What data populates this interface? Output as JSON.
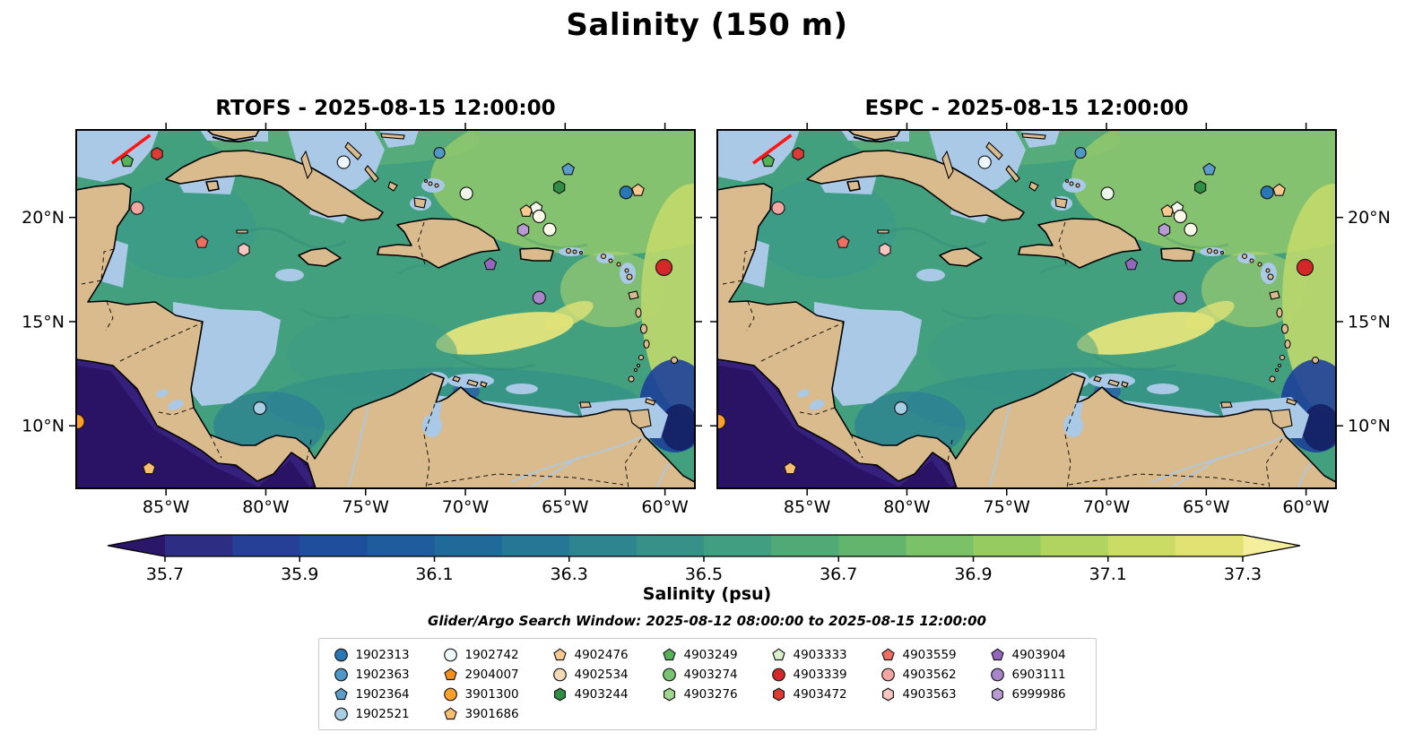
{
  "title": "Salinity (150 m)",
  "panels": [
    {
      "title": "RTOFS - 2025-08-15 12:00:00"
    },
    {
      "title": "ESPC - 2025-08-15 12:00:00"
    }
  ],
  "search_window": "Glider/Argo Search Window: 2025-08-12 08:00:00 to 2025-08-15 12:00:00",
  "chart_data": {
    "type": "heatmap",
    "title": "Salinity (150 m)",
    "variable": "Salinity (psu)",
    "depth_label": "150 m",
    "panel_titles": [
      "RTOFS - 2025-08-15 12:00:00",
      "ESPC - 2025-08-15 12:00:00"
    ],
    "lon_range": [
      -89.5,
      -58.5
    ],
    "lat_range": [
      7.0,
      24.2
    ],
    "lon_ticks": [
      "85°W",
      "80°W",
      "75°W",
      "70°W",
      "65°W",
      "60°W"
    ],
    "lon_tick_values": [
      -85,
      -80,
      -75,
      -70,
      -65,
      -60
    ],
    "lat_ticks": [
      "20°N",
      "15°N",
      "10°N"
    ],
    "lat_tick_values": [
      20,
      15,
      10
    ],
    "colorbar": {
      "label": "Salinity (psu)",
      "tick_labels": [
        "35.7",
        "35.9",
        "36.1",
        "36.3",
        "36.5",
        "36.7",
        "36.9",
        "37.1",
        "37.3"
      ],
      "tick_values": [
        35.7,
        35.9,
        36.1,
        36.3,
        36.5,
        36.7,
        36.9,
        37.1,
        37.3
      ],
      "vmin": 35.7,
      "vmax": 37.3,
      "extend": "both",
      "under_color": "#2a1769",
      "over_color": "#f5ee9d",
      "segment_colors": [
        "#2c2d83",
        "#263f97",
        "#1f4e9d",
        "#1e5c9d",
        "#206a9a",
        "#267795",
        "#2e848f",
        "#379188",
        "#429e80",
        "#50aa76",
        "#63b56d",
        "#7bc167",
        "#95cb61",
        "#b0d45f",
        "#cbdc64",
        "#e2e272"
      ]
    },
    "glider_track": {
      "lon1": -87.7,
      "lat1": 22.6,
      "lon2": -85.8,
      "lat2": 23.95,
      "color": "#ff1414"
    },
    "floats": [
      {
        "shape": "pentagon",
        "color": "#53b356",
        "lon": -86.95,
        "lat": 22.7
      },
      {
        "shape": "hexagon",
        "color": "#de3b34",
        "lon": -85.45,
        "lat": 23.05
      },
      {
        "shape": "circle",
        "color": "#f4a6a3",
        "lon": -86.45,
        "lat": 20.45
      },
      {
        "shape": "pentagon",
        "color": "#ef6e62",
        "lon": -83.2,
        "lat": 18.8
      },
      {
        "shape": "hexagon",
        "color": "#f8c5c0",
        "lon": -81.1,
        "lat": 18.45
      },
      {
        "shape": "circle",
        "color": "#eef7fb",
        "lon": -76.1,
        "lat": 22.65
      },
      {
        "shape": "circle",
        "color": "#4e97c9",
        "lon": -71.3,
        "lat": 23.1,
        "r": 6
      },
      {
        "shape": "circle",
        "color": "#ecf6e9",
        "lon": -69.95,
        "lat": 21.15
      },
      {
        "shape": "pentagon",
        "color": "#5a9ccc",
        "lon": -64.85,
        "lat": 22.3
      },
      {
        "shape": "hexagon",
        "color": "#2f8e44",
        "lon": -65.3,
        "lat": 21.45
      },
      {
        "shape": "circle",
        "color": "#2878b8",
        "lon": -61.95,
        "lat": 21.2
      },
      {
        "shape": "pentagon",
        "color": "#f8c98e",
        "lon": -61.35,
        "lat": 21.3
      },
      {
        "shape": "pentagon",
        "color": "#f8c98e",
        "lon": -66.95,
        "lat": 20.3
      },
      {
        "shape": "pentagon",
        "color": "#f3f8ee",
        "lon": -66.45,
        "lat": 20.45
      },
      {
        "shape": "circle",
        "color": "#fdf8e8",
        "lon": -66.3,
        "lat": 20.05
      },
      {
        "shape": "circle",
        "color": "#fdfbe9",
        "lon": -65.78,
        "lat": 19.42
      },
      {
        "shape": "hexagon",
        "color": "#b89bd3",
        "lon": -67.1,
        "lat": 19.4
      },
      {
        "shape": "pentagon",
        "color": "#9467bd",
        "lon": -68.75,
        "lat": 17.75
      },
      {
        "shape": "circle",
        "color": "#a884c9",
        "lon": -66.3,
        "lat": 16.15
      },
      {
        "shape": "circle",
        "color": "#d62728",
        "lon": -60.05,
        "lat": 17.6,
        "r": 9
      },
      {
        "shape": "circle",
        "color": "#a8cee4",
        "lon": -80.3,
        "lat": 10.85
      },
      {
        "shape": "circle",
        "color": "#fda029",
        "lon": -89.45,
        "lat": 10.2,
        "r": 8
      },
      {
        "shape": "pentagon",
        "color": "#fdbf6f",
        "lon": -85.85,
        "lat": 7.95
      }
    ]
  },
  "legend": {
    "columns": [
      [
        {
          "label": "1902313",
          "shape": "circle",
          "color": "#2878b8"
        },
        {
          "label": "1902363",
          "shape": "circle",
          "color": "#4e97c9"
        },
        {
          "label": "1902364",
          "shape": "pentagon",
          "color": "#5a9ccc"
        },
        {
          "label": "1902521",
          "shape": "circle",
          "color": "#a8cee4"
        }
      ],
      [
        {
          "label": "1902742",
          "shape": "circle",
          "color": "#eef7fb"
        },
        {
          "label": "2904007",
          "shape": "pentagon",
          "color": "#f78f1e"
        },
        {
          "label": "3901300",
          "shape": "circle",
          "color": "#fda029"
        },
        {
          "label": "3901686",
          "shape": "pentagon",
          "color": "#fdbf6f"
        }
      ],
      [
        {
          "label": "4902476",
          "shape": "pentagon",
          "color": "#f8c98e"
        },
        {
          "label": "4902534",
          "shape": "circle",
          "color": "#f3dab4"
        },
        {
          "label": "4903244",
          "shape": "hexagon",
          "color": "#2f8e44"
        }
      ],
      [
        {
          "label": "4903249",
          "shape": "pentagon",
          "color": "#53b356"
        },
        {
          "label": "4903274",
          "shape": "circle",
          "color": "#77c470"
        },
        {
          "label": "4903276",
          "shape": "hexagon",
          "color": "#9fd98f"
        }
      ],
      [
        {
          "label": "4903333",
          "shape": "pentagon",
          "color": "#d8f0cb"
        },
        {
          "label": "4903339",
          "shape": "circle",
          "color": "#d62728"
        },
        {
          "label": "4903472",
          "shape": "hexagon",
          "color": "#de3b34"
        }
      ],
      [
        {
          "label": "4903559",
          "shape": "pentagon",
          "color": "#ef6e62"
        },
        {
          "label": "4903562",
          "shape": "circle",
          "color": "#f4a6a3"
        },
        {
          "label": "4903563",
          "shape": "hexagon",
          "color": "#f8c5c0"
        }
      ],
      [
        {
          "label": "4903904",
          "shape": "pentagon",
          "color": "#9467bd"
        },
        {
          "label": "6903111",
          "shape": "circle",
          "color": "#a884c9"
        },
        {
          "label": "6999986",
          "shape": "hexagon",
          "color": "#b89bd3"
        }
      ]
    ]
  }
}
